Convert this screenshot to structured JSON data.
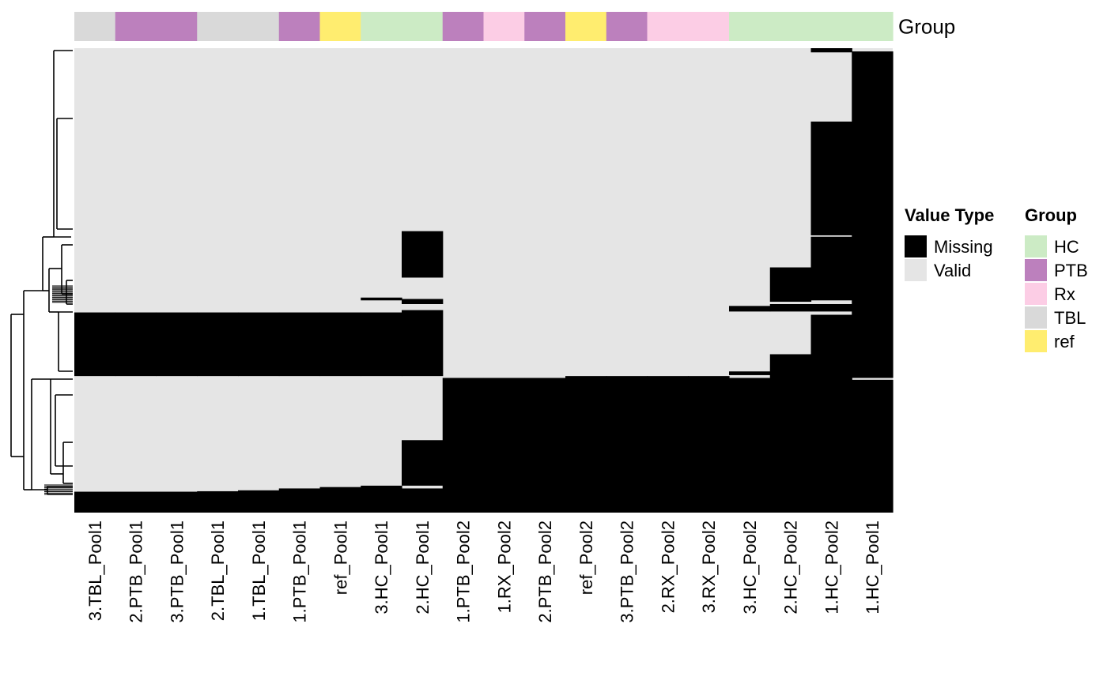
{
  "chart_data": {
    "type": "heatmap",
    "annotation_name": "Group",
    "columns": [
      {
        "name": "3.TBL_Pool1",
        "group": "TBL"
      },
      {
        "name": "2.PTB_Pool1",
        "group": "PTB"
      },
      {
        "name": "3.PTB_Pool1",
        "group": "PTB"
      },
      {
        "name": "2.TBL_Pool1",
        "group": "TBL"
      },
      {
        "name": "1.TBL_Pool1",
        "group": "TBL"
      },
      {
        "name": "1.PTB_Pool1",
        "group": "PTB"
      },
      {
        "name": "ref_Pool1",
        "group": "ref"
      },
      {
        "name": "3.HC_Pool1",
        "group": "HC"
      },
      {
        "name": "2.HC_Pool1",
        "group": "HC"
      },
      {
        "name": "1.PTB_Pool2",
        "group": "PTB"
      },
      {
        "name": "1.RX_Pool2",
        "group": "Rx"
      },
      {
        "name": "2.PTB_Pool2",
        "group": "PTB"
      },
      {
        "name": "ref_Pool2",
        "group": "ref"
      },
      {
        "name": "3.PTB_Pool2",
        "group": "PTB"
      },
      {
        "name": "2.RX_Pool2",
        "group": "Rx"
      },
      {
        "name": "3.RX_Pool2",
        "group": "Rx"
      },
      {
        "name": "3.HC_Pool2",
        "group": "HC"
      },
      {
        "name": "2.HC_Pool2",
        "group": "HC"
      },
      {
        "name": "1.HC_Pool2",
        "group": "HC"
      },
      {
        "name": "1.HC_Pool1",
        "group": "HC"
      }
    ],
    "value_legend": {
      "title": "Value Type",
      "entries": [
        {
          "label": "Missing",
          "color": "#000000"
        },
        {
          "label": "Valid",
          "color": "#e5e5e5"
        }
      ]
    },
    "group_legend": {
      "title": "Group",
      "entries": [
        {
          "label": "HC",
          "color": "#ccebc5"
        },
        {
          "label": "PTB",
          "color": "#bc80bd"
        },
        {
          "label": "Rx",
          "color": "#fccde5"
        },
        {
          "label": "TBL",
          "color": "#d9d9d9"
        },
        {
          "label": "ref",
          "color": "#ffed6f"
        }
      ]
    },
    "row_fraction_note": "missing spans are fractions (0 = top row, 1 = bottom row) of the ordered feature rows",
    "missing_spans": [
      [
        [
          0.569,
          0.706
        ],
        [
          0.955,
          1.0
        ]
      ],
      [
        [
          0.569,
          0.706
        ],
        [
          0.955,
          1.0
        ]
      ],
      [
        [
          0.569,
          0.706
        ],
        [
          0.955,
          1.0
        ]
      ],
      [
        [
          0.569,
          0.706
        ],
        [
          0.954,
          1.0
        ]
      ],
      [
        [
          0.569,
          0.706
        ],
        [
          0.952,
          1.0
        ]
      ],
      [
        [
          0.569,
          0.706
        ],
        [
          0.948,
          1.0
        ]
      ],
      [
        [
          0.569,
          0.706
        ],
        [
          0.945,
          1.0
        ]
      ],
      [
        [
          0.537,
          0.543
        ],
        [
          0.569,
          0.706
        ],
        [
          0.942,
          1.0
        ]
      ],
      [
        [
          0.394,
          0.494
        ],
        [
          0.54,
          0.551
        ],
        [
          0.564,
          0.706
        ],
        [
          0.844,
          0.942
        ],
        [
          0.948,
          1.0
        ]
      ],
      [
        [
          0.71,
          1.0
        ]
      ],
      [
        [
          0.71,
          1.0
        ]
      ],
      [
        [
          0.71,
          1.0
        ]
      ],
      [
        [
          0.706,
          1.0
        ]
      ],
      [
        [
          0.706,
          1.0
        ]
      ],
      [
        [
          0.706,
          1.0
        ]
      ],
      [
        [
          0.706,
          1.0
        ]
      ],
      [
        [
          0.555,
          0.567
        ],
        [
          0.696,
          0.704
        ],
        [
          0.71,
          1.0
        ]
      ],
      [
        [
          0.472,
          0.546
        ],
        [
          0.551,
          0.567
        ],
        [
          0.659,
          1.0
        ]
      ],
      [
        [
          0.0,
          0.009
        ],
        [
          0.158,
          0.403
        ],
        [
          0.406,
          0.543
        ],
        [
          0.551,
          0.567
        ],
        [
          0.574,
          1.0
        ]
      ],
      [
        [
          0.007,
          0.71
        ],
        [
          0.714,
          1.0
        ]
      ]
    ]
  }
}
